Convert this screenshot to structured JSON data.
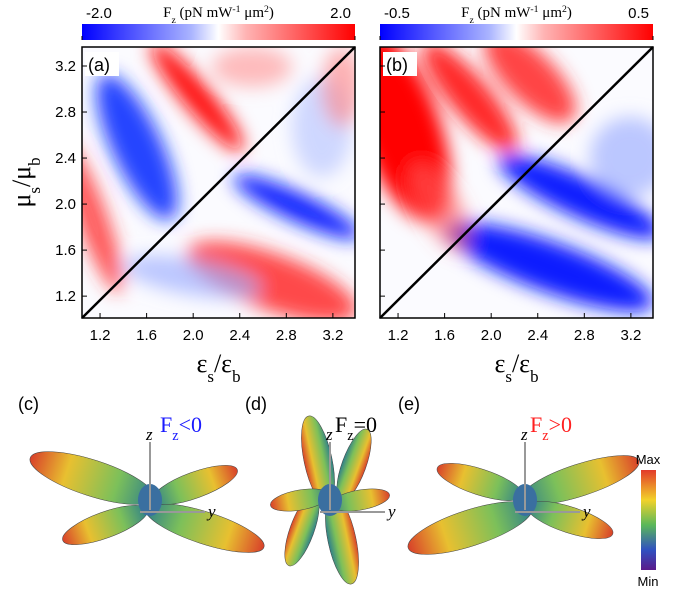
{
  "chart_data": [
    {
      "type": "heatmap",
      "panel_label": "(a)",
      "colorbar_label": [
        "F",
        "z",
        " (pN mW",
        "-1",
        " μm",
        "2",
        ")"
      ],
      "clim": [
        -2,
        2
      ],
      "cticks": [
        {
          "value": -2,
          "label": "-2.0"
        },
        {
          "value": 2,
          "label": "2.0"
        }
      ],
      "xlabel": [
        "ε",
        "s",
        "/ε",
        "b"
      ],
      "ylabel": [
        "μ",
        "s",
        "/μ",
        "b"
      ],
      "xlim": [
        1.045,
        3.39
      ],
      "ylim": [
        1.01,
        3.365
      ],
      "xticks": [
        1.2,
        1.6,
        {
          "value": 2,
          "label": "2.0"
        },
        2.4,
        2.8,
        3.2
      ],
      "yticks": [
        1.2,
        1.6,
        {
          "value": 2,
          "label": "2.0"
        },
        2.4,
        2.8,
        3.2
      ]
    },
    {
      "type": "heatmap",
      "panel_label": "(b)",
      "colorbar_label": [
        "F",
        "z",
        " (pN mW",
        "-1",
        " μm",
        "2",
        ")"
      ],
      "clim": [
        -0.5,
        0.5
      ],
      "cticks": [
        {
          "value": -0.5,
          "label": "-0.5"
        },
        {
          "value": 0.5,
          "label": "0.5"
        }
      ],
      "xlabel": [
        "ε",
        "s",
        "/ε",
        "b"
      ],
      "xlim": [
        1.045,
        3.39
      ],
      "ylim": [
        1.01,
        3.365
      ],
      "xticks": [
        1.2,
        1.6,
        {
          "value": 2,
          "label": "2.0"
        },
        2.4,
        2.8,
        3.2
      ],
      "yticks": [
        1.2,
        1.6,
        {
          "value": 2,
          "label": "2.0"
        },
        2.4,
        2.8,
        3.2
      ]
    }
  ],
  "patterns": [
    {
      "label": "(c)",
      "condition": [
        "F",
        "z",
        "<0"
      ],
      "color": "#1a1aff",
      "axes": [
        "z",
        "y"
      ]
    },
    {
      "label": "(d)",
      "condition": [
        "F",
        "z",
        "=0"
      ],
      "color": "#000000",
      "axes": [
        "z",
        "y"
      ]
    },
    {
      "label": "(e)",
      "condition": [
        "F",
        "z",
        ">0"
      ],
      "color": "#ff2020",
      "axes": [
        "z",
        "y"
      ]
    }
  ],
  "pattern_colorbar": {
    "max": "Max",
    "min": "Min"
  }
}
